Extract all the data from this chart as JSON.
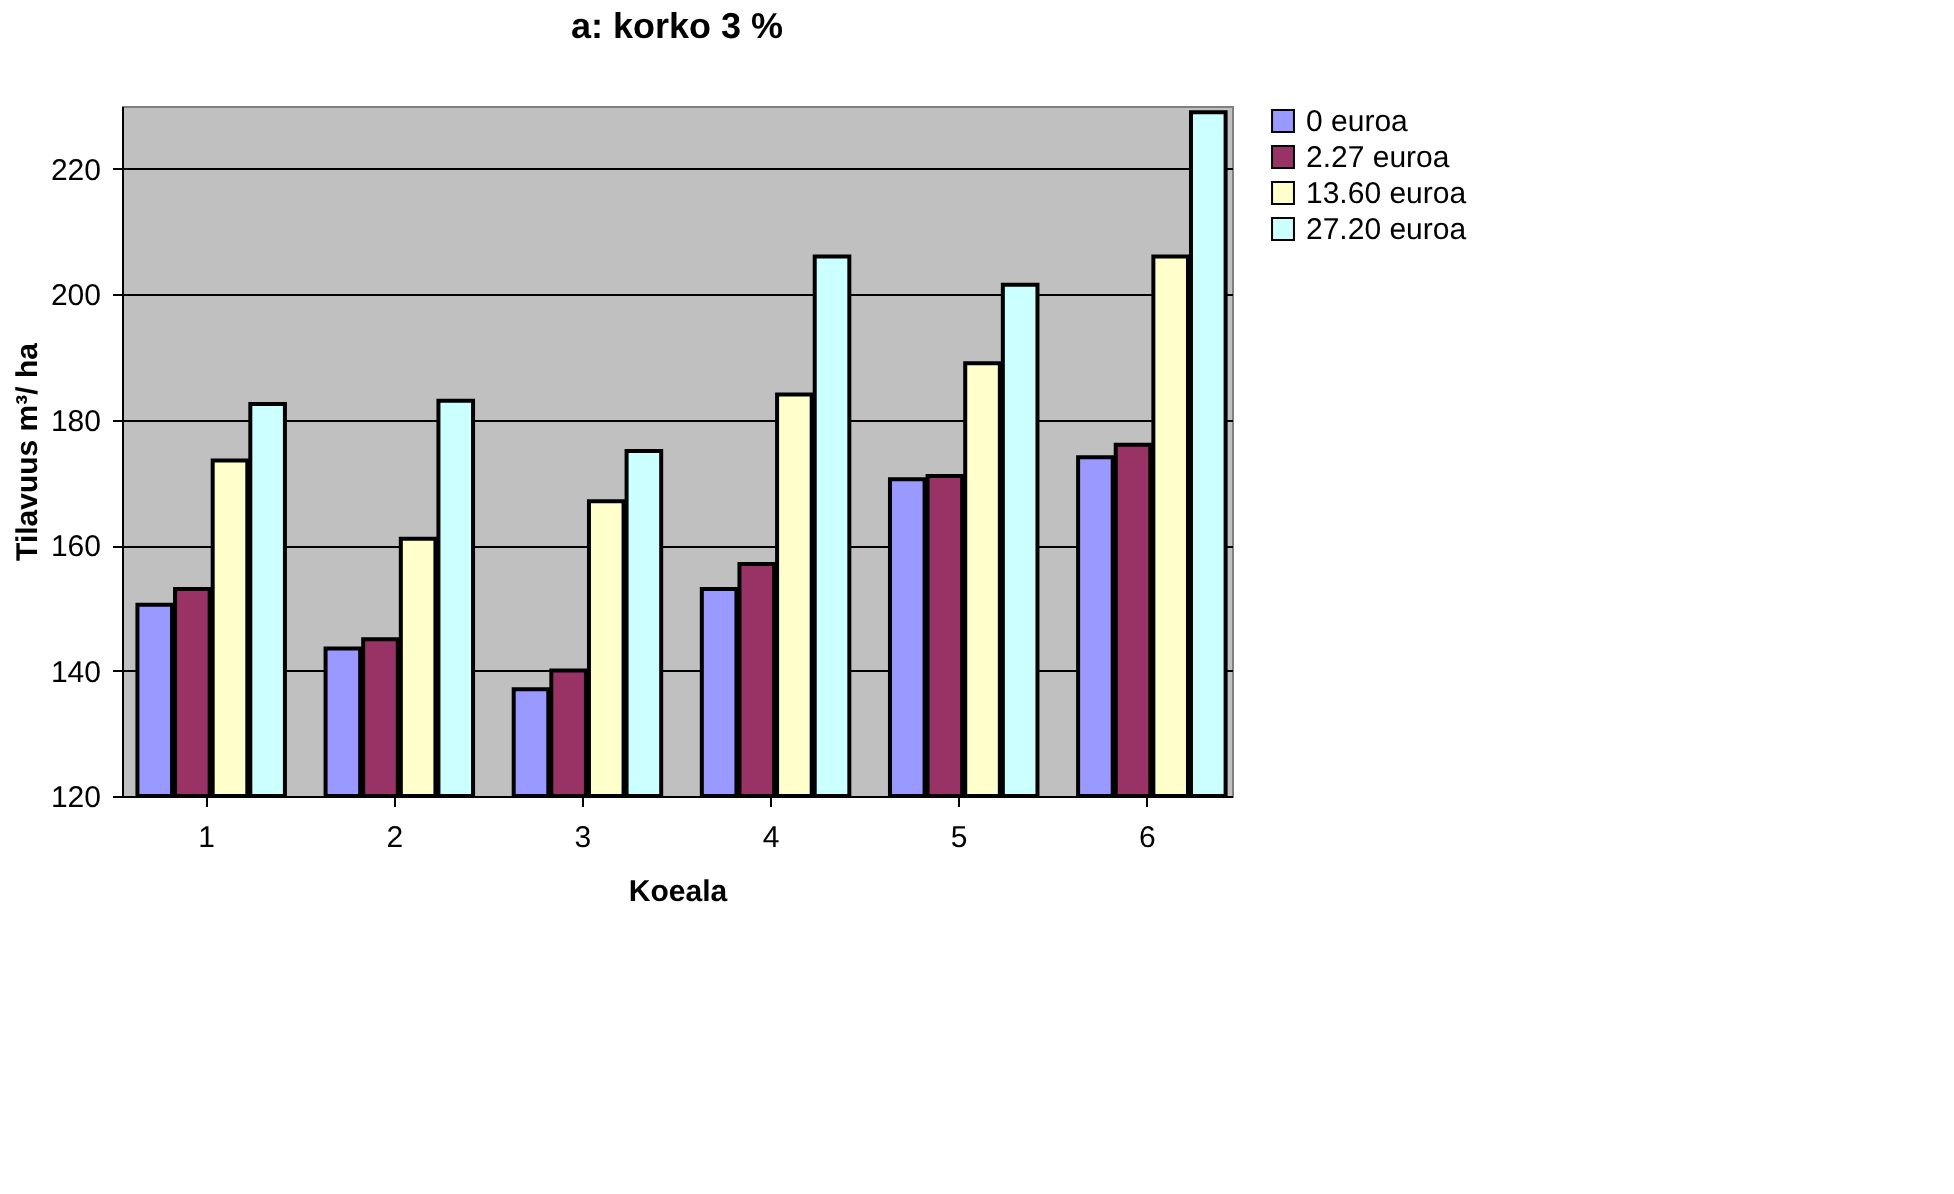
{
  "chart_data": {
    "type": "bar",
    "title": "a: korko 3 %",
    "xlabel": "Koeala",
    "ylabel": "Tilavuus m³/ ha",
    "categories": [
      "1",
      "2",
      "3",
      "4",
      "5",
      "6"
    ],
    "series": [
      {
        "name": "0 euroa",
        "color": "#9999ff",
        "values": [
          150.5,
          143.5,
          137,
          153,
          170.5,
          174
        ]
      },
      {
        "name": "2.27 euroa",
        "color": "#993366",
        "values": [
          153,
          145,
          140,
          157,
          171,
          176
        ]
      },
      {
        "name": "13.60 euroa",
        "color": "#ffffcc",
        "values": [
          173.5,
          161,
          167,
          184,
          189,
          206
        ]
      },
      {
        "name": "27.20 euroa",
        "color": "#ccffff",
        "values": [
          182.5,
          183,
          175,
          206,
          201.5,
          229
        ]
      }
    ],
    "ylim": [
      120,
      230
    ],
    "yticks": [
      120,
      140,
      160,
      180,
      200,
      220
    ],
    "grid": "y",
    "legend": "right"
  }
}
